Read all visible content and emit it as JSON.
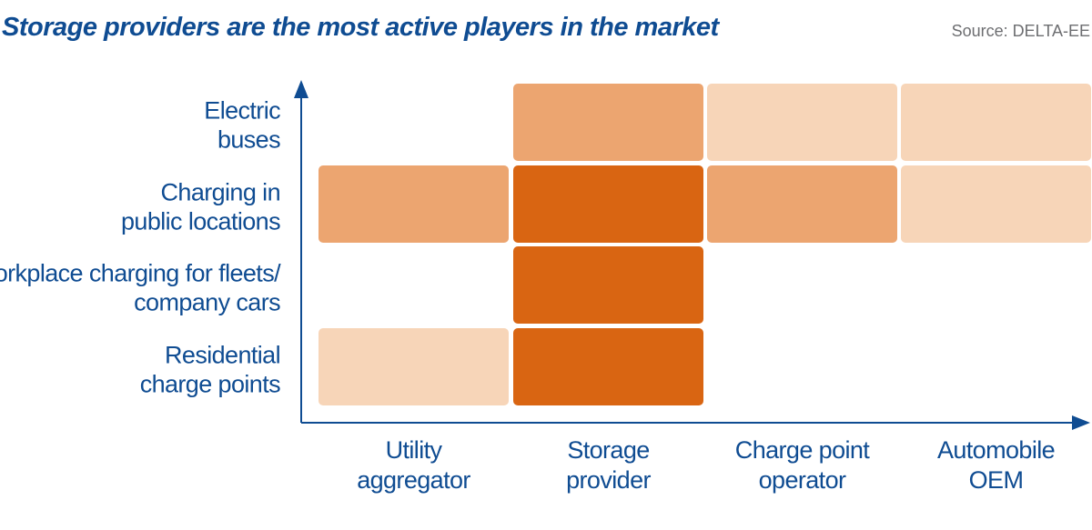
{
  "header": {
    "title": "Storage providers are the most active players in the market",
    "source": "Source: DELTA-EE"
  },
  "chart_data": {
    "type": "heatmap",
    "columns": [
      [
        "Utility",
        "aggregator"
      ],
      [
        "Storage",
        "provider"
      ],
      [
        "Charge point",
        "operator"
      ],
      [
        "Automobile",
        "OEM"
      ]
    ],
    "rows": [
      [
        "Electric",
        "buses"
      ],
      [
        "Charging in",
        "public locations"
      ],
      [
        "Workplace charging for fleets/",
        "company cars"
      ],
      [
        "Residential",
        "charge points"
      ]
    ],
    "activity_levels": [
      [
        0,
        2,
        1,
        1
      ],
      [
        2,
        3,
        2,
        1
      ],
      [
        0,
        3,
        0,
        0
      ],
      [
        1,
        3,
        0,
        0
      ]
    ],
    "level_colors": [
      "#ffffff",
      "#f7d5b8",
      "#eca570",
      "#d96512"
    ],
    "axis_color": "#0f4c92",
    "grid": false,
    "legend": "none"
  }
}
